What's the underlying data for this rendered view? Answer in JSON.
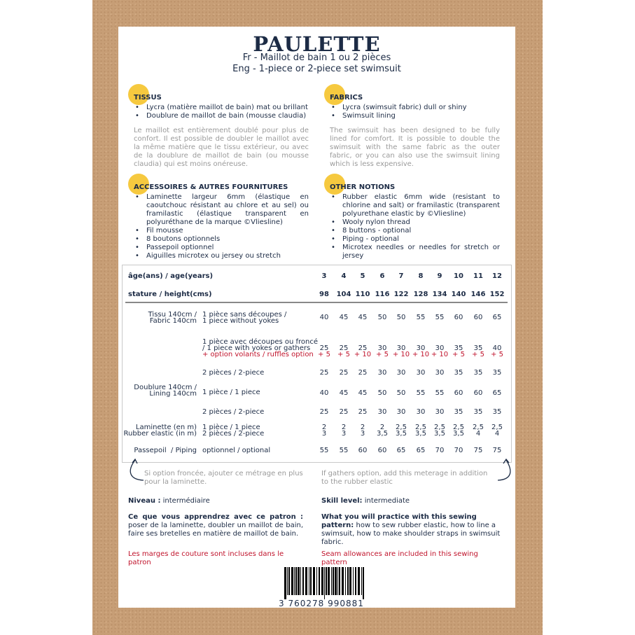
{
  "header": {
    "title": "PAULETTE",
    "subtitle_fr": "Fr - Maillot de bain 1 ou 2 pièces",
    "subtitle_en": "Eng - 1-piece or 2-piece set swimsuit"
  },
  "fr": {
    "tissus": {
      "heading": "TISSUS",
      "items": [
        "Lycra (matière maillot de bain) mat ou brillant",
        "Doublure de maillot de bain (mousse claudia)"
      ],
      "note": "Le maillot est entièrement doublé pour plus de confort. Il est possible de doubler le maillot avec la même matière que le tissu extérieur, ou avec de la doublure de maillot de bain (ou mousse claudia) qui est moins onéreuse."
    },
    "accessoires": {
      "heading": "ACCESSOIRES & AUTRES FOURNITURES",
      "items": [
        "Laminette largeur 6mm (élastique en caoutchouc résistant au chlore et au sel) ou framilastic (élastique transparent en polyuréthane de la marque ©Vliesline)",
        "Fil mousse",
        "8 boutons optionnels",
        "Passepoil optionnel",
        "Aiguilles microtex ou jersey ou stretch"
      ]
    }
  },
  "en": {
    "fabrics": {
      "heading": "FABRICS",
      "items": [
        "Lycra (swimsuit fabric) dull or shiny",
        "Swimsuit lining"
      ],
      "note": "The swimsuit has been designed to be fully lined for comfort. It is possible to double the swimsuit with the same fabric as the outer fabric, or you can also use the swimsuit lining which is less expensive."
    },
    "notions": {
      "heading": "OTHER NOTIONS",
      "items": [
        "Rubber elastic 6mm wide (resistant to chlorine and salt) or framilastic (transparent polyurethane elastic by ©Vliesline)",
        "Wooly nylon thread",
        "8 buttons - optional",
        "Piping - optional",
        "Microtex needles or needles for stretch or jersey"
      ]
    }
  },
  "table": {
    "age_label": "âge(ans) / age(years)",
    "height_label": "stature / height(cms)",
    "ages": [
      "3",
      "4",
      "5",
      "6",
      "7",
      "8",
      "9",
      "10",
      "11",
      "12"
    ],
    "heights": [
      "98",
      "104",
      "110",
      "116",
      "122",
      "128",
      "134",
      "140",
      "146",
      "152"
    ],
    "groups": {
      "tissu": "Tissu 140cm /\nFabric 140cm",
      "doublure": "Doublure 140cm /\nLining 140cm",
      "laminette": "Laminette (en m)\nRubber elastic (in m)",
      "passepoil": "Passepoil  / Piping"
    },
    "rows": [
      {
        "label": "1 pièce sans découpes /\n1 piece without yokes",
        "values": [
          "40",
          "45",
          "45",
          "50",
          "50",
          "55",
          "55",
          "60",
          "60",
          "65"
        ]
      },
      {
        "label": "1 pièce avec découpes ou froncé\n/ 1 piece with yokes or gathers",
        "option": "+ option volants / ruffles option",
        "values": [
          "25",
          "25",
          "25",
          "30",
          "30",
          "30",
          "30",
          "35",
          "35",
          "40"
        ],
        "option_values": [
          "+ 5",
          "+ 5",
          "+ 10",
          "+ 5",
          "+ 10",
          "+ 10",
          "+ 10",
          "+ 5",
          "+ 5",
          "+ 5"
        ]
      },
      {
        "label": "2 pièces / 2-piece",
        "values": [
          "25",
          "25",
          "25",
          "30",
          "30",
          "30",
          "30",
          "35",
          "35",
          "35"
        ]
      },
      {
        "label": "1 pièce / 1 piece",
        "values": [
          "40",
          "45",
          "45",
          "50",
          "50",
          "55",
          "55",
          "60",
          "60",
          "65"
        ]
      },
      {
        "label": "2 pièces / 2-piece",
        "values": [
          "25",
          "25",
          "25",
          "30",
          "30",
          "30",
          "30",
          "35",
          "35",
          "35"
        ]
      },
      {
        "label": "1 pièce / 1 piece\n2 pièces / 2-piece",
        "values": [
          "2\n3",
          "2\n3",
          "2\n3",
          "2\n3,5",
          "2,5\n3,5",
          "2,5\n3,5",
          "2,5\n3,5",
          "2,5\n3,5",
          "2,5\n4",
          "2,5\n4"
        ]
      },
      {
        "label": "optionnel / optional",
        "values": [
          "55",
          "55",
          "60",
          "60",
          "65",
          "65",
          "70",
          "70",
          "75",
          "75"
        ]
      }
    ],
    "note_fr": "Si option froncée, ajouter ce métrage en plus pour la laminette.",
    "note_en": "If gathers option, add this meterage in addition to the rubber elastic"
  },
  "footer": {
    "level_fr_label": "Niveau :",
    "level_fr": " intermédiaire",
    "level_en_label": "Skill level:",
    "level_en": " intermediate",
    "learn_fr_label": "Ce que vous apprendrez avec ce patron :",
    "learn_fr": " poser de la laminette, doubler un maillot de bain, faire ses bretelles en matière de maillot de bain.",
    "learn_en_label": "What you will practice with this sewing pattern:",
    "learn_en": " how to sew rubber elastic, how to line a swimsuit, how to make shoulder straps in swimsuit fabric.",
    "seam_fr": "Les marges de couture sont incluses dans le patron",
    "seam_en": "Seam allowances are included in this sewing pattern",
    "barcode": "3 760278 990881"
  },
  "colors": {
    "navy": "#1c2b45",
    "accent_yellow": "#f6c93f",
    "red": "#c0142c",
    "kraft": "#c79e76"
  }
}
